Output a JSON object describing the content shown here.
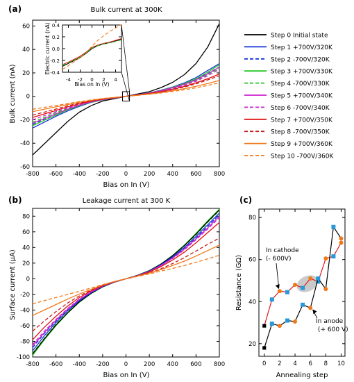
{
  "chart_data": [
    {
      "panel": "(a)",
      "type": "line",
      "title": "Bulk current at 300K",
      "xlabel": "Bias on In (V)",
      "ylabel": "Bulk current (nA)",
      "xlim": [
        -800,
        800
      ],
      "ylim": [
        -60,
        65
      ],
      "xticks": [
        -800,
        -600,
        -400,
        -200,
        0,
        200,
        400,
        600,
        800
      ],
      "yticks": [
        -60,
        -40,
        -20,
        0,
        20,
        40,
        60
      ],
      "x": [
        -800,
        -700,
        -600,
        -500,
        -400,
        -300,
        -200,
        -100,
        0,
        100,
        200,
        300,
        400,
        500,
        600,
        700,
        800
      ],
      "series": [
        {
          "name": "Step 0 Initial state",
          "color": "#000000",
          "dash": false,
          "values": [
            -50,
            -40.5,
            -31,
            -21.5,
            -13.5,
            -8,
            -4,
            -2,
            0,
            2,
            4,
            7.5,
            12,
            18.5,
            28,
            42,
            62
          ]
        },
        {
          "name": "Step 1 +700V/320K",
          "color": "#1030d8",
          "dash": false,
          "values": [
            -27,
            -22,
            -17,
            -12.5,
            -8.5,
            -5.2,
            -3,
            -1.5,
            0,
            1.5,
            3,
            5.2,
            8,
            11.5,
            16,
            22,
            28
          ]
        },
        {
          "name": "Step 2 -700V/320K",
          "color": "#1030d8",
          "dash": true,
          "values": [
            -24,
            -19.5,
            -15,
            -11,
            -7.5,
            -4.8,
            -2.8,
            -1.4,
            0,
            1.4,
            2.8,
            4.8,
            7.5,
            10.5,
            14.5,
            19.5,
            25
          ]
        },
        {
          "name": "Step 3 +700V/330K",
          "color": "#22c822",
          "dash": false,
          "values": [
            -25,
            -20.5,
            -16,
            -11.5,
            -8,
            -5,
            -2.9,
            -1.4,
            0,
            1.4,
            2.9,
            5,
            7.8,
            11,
            15,
            20.5,
            27
          ]
        },
        {
          "name": "Step 4 -700V/330K",
          "color": "#22c822",
          "dash": true,
          "values": [
            -22,
            -18,
            -14,
            -10.5,
            -7.2,
            -4.6,
            -2.7,
            -1.3,
            0,
            1.3,
            2.7,
            4.6,
            7,
            10,
            13.5,
            18.5,
            24
          ]
        },
        {
          "name": "Step 5 +700V/340K",
          "color": "#d020d0",
          "dash": false,
          "values": [
            -23,
            -19,
            -15,
            -11,
            -7.6,
            -4.8,
            -2.8,
            -1.4,
            0,
            1.4,
            2.8,
            4.8,
            7.3,
            10.3,
            14,
            19,
            25
          ]
        },
        {
          "name": "Step 6 -700V/340K",
          "color": "#d020d0",
          "dash": true,
          "values": [
            -20,
            -16.5,
            -13,
            -9.8,
            -6.8,
            -4.4,
            -2.6,
            -1.3,
            0,
            1.3,
            2.6,
            4.4,
            6.7,
            9.4,
            12.8,
            17.5,
            23
          ]
        },
        {
          "name": "Step 7 +700V/350K",
          "color": "#e01010",
          "dash": false,
          "values": [
            -18,
            -15,
            -12,
            -9,
            -6.3,
            -4.1,
            -2.4,
            -1.2,
            0,
            1.2,
            2.4,
            4,
            6,
            8.5,
            11.5,
            15,
            19
          ]
        },
        {
          "name": "Step 8 -700V/350K",
          "color": "#c41818",
          "dash": true,
          "values": [
            -16,
            -13.5,
            -10.8,
            -8.1,
            -5.8,
            -3.8,
            -2.2,
            -1.1,
            0,
            1.1,
            2.2,
            3.8,
            5.7,
            8,
            10.7,
            14,
            17.5
          ]
        },
        {
          "name": "Step 9 +700V/360K",
          "color": "#f07818",
          "dash": false,
          "values": [
            -13,
            -11,
            -9,
            -7,
            -5,
            -3.4,
            -2,
            -1,
            0,
            1,
            2,
            3.2,
            4.8,
            6.6,
            8.6,
            11,
            13.5
          ]
        },
        {
          "name": "Step 10 -700V/360K",
          "color": "#f07818",
          "dash": true,
          "values": [
            -11,
            -9.4,
            -7.8,
            -6.2,
            -4.5,
            -3.1,
            -1.9,
            -0.9,
            0,
            0.9,
            1.8,
            2.9,
            4.2,
            5.6,
            7.3,
            9.3,
            11.5
          ]
        }
      ],
      "inset": {
        "xlabel": "Bias on In (V)",
        "ylabel": "Electric current (nA)",
        "xlim": [
          -5,
          5
        ],
        "ylim": [
          -0.4,
          0.4
        ],
        "xticks": [
          -4,
          -2,
          0,
          2,
          4
        ],
        "yticks": [
          -0.4,
          -0.2,
          0.0,
          0.2,
          0.4
        ],
        "x": [
          -5,
          -4,
          -3,
          -2,
          -1,
          0,
          1,
          2,
          3,
          4,
          5
        ],
        "series": [
          {
            "color": "#000000",
            "dash": false,
            "values": [
              -0.3,
              -0.25,
              -0.2,
              -0.15,
              -0.08,
              0,
              0.05,
              0.08,
              0.1,
              0.13,
              0.16
            ]
          },
          {
            "color": "#e01010",
            "dash": false,
            "values": [
              -0.27,
              -0.23,
              -0.18,
              -0.13,
              -0.06,
              0.02,
              0.06,
              0.09,
              0.11,
              0.14,
              0.17
            ]
          },
          {
            "color": "#22c822",
            "dash": true,
            "values": [
              -0.28,
              -0.24,
              -0.19,
              -0.14,
              -0.07,
              0.01,
              0.05,
              0.08,
              0.1,
              0.12,
              0.15
            ]
          },
          {
            "color": "#f07818",
            "dash": true,
            "values": [
              -0.35,
              -0.29,
              -0.22,
              -0.15,
              -0.07,
              0.04,
              0.14,
              0.22,
              0.29,
              0.35,
              0.41
            ]
          }
        ]
      }
    },
    {
      "panel": "(b)",
      "type": "line",
      "title": "Leakage current at 300 K",
      "xlabel": "Bias on In (V)",
      "ylabel": "Surface current (µA)",
      "xlim": [
        -800,
        800
      ],
      "ylim": [
        -100,
        90
      ],
      "xticks": [
        -800,
        -600,
        -400,
        -200,
        0,
        200,
        400,
        600,
        800
      ],
      "yticks": [
        -100,
        -80,
        -60,
        -40,
        -20,
        0,
        20,
        40,
        60,
        80
      ],
      "x": [
        -800,
        -700,
        -600,
        -500,
        -400,
        -300,
        -200,
        -100,
        0,
        100,
        200,
        300,
        400,
        500,
        600,
        700,
        800
      ],
      "series": [
        {
          "color": "#22c822",
          "dash": false,
          "values": [
            -98,
            -78,
            -60,
            -44,
            -30,
            -19,
            -10.5,
            -4.5,
            0,
            4.5,
            10.5,
            19,
            30,
            43,
            58,
            74,
            89
          ]
        },
        {
          "color": "#22c822",
          "dash": true,
          "values": [
            -95,
            -76,
            -58,
            -43,
            -29,
            -18.5,
            -10,
            -4.3,
            0,
            4.3,
            10,
            18.5,
            29,
            42,
            56,
            72,
            87
          ]
        },
        {
          "color": "#000000",
          "dash": false,
          "values": [
            -96,
            -77,
            -59,
            -43.5,
            -29.5,
            -18.7,
            -10.2,
            -4.4,
            0,
            4.4,
            10.2,
            18.7,
            29.5,
            42.5,
            57,
            73,
            88
          ]
        },
        {
          "color": "#1030d8",
          "dash": false,
          "values": [
            -92,
            -73,
            -56,
            -41,
            -28,
            -18,
            -9.8,
            -4.2,
            0,
            4.2,
            9.8,
            18,
            28,
            40,
            54,
            69,
            84
          ]
        },
        {
          "color": "#1030d8",
          "dash": true,
          "values": [
            -88,
            -70,
            -54,
            -40,
            -27,
            -17.5,
            -9.6,
            -4.1,
            0,
            4.1,
            9.6,
            17.5,
            27,
            39,
            52,
            67,
            82
          ]
        },
        {
          "color": "#d020d0",
          "dash": false,
          "values": [
            -86,
            -69,
            -53,
            -39,
            -26.5,
            -17,
            -9.4,
            -4.1,
            0,
            4.1,
            9.4,
            17,
            26.5,
            38,
            51,
            65,
            80
          ]
        },
        {
          "color": "#d020d0",
          "dash": true,
          "values": [
            -84,
            -67,
            -52,
            -38,
            -26,
            -16.6,
            -9.2,
            -4,
            0,
            4,
            9.2,
            16.6,
            26,
            37,
            50,
            63.5,
            78
          ]
        },
        {
          "color": "#e01010",
          "dash": false,
          "values": [
            -78,
            -62,
            -48,
            -35,
            -24,
            -15.5,
            -8.6,
            -3.8,
            0,
            3.8,
            8.6,
            15.5,
            24,
            34,
            46,
            59,
            72
          ]
        },
        {
          "color": "#c41818",
          "dash": true,
          "values": [
            -67,
            -54,
            -42,
            -31,
            -22,
            -14.5,
            -8.2,
            -3.6,
            0,
            3.4,
            7.6,
            12.8,
            19.5,
            27,
            35.5,
            44,
            52
          ]
        },
        {
          "color": "#f07818",
          "dash": false,
          "values": [
            -47,
            -40,
            -33,
            -26,
            -19.5,
            -13.5,
            -8,
            -3.6,
            0,
            3.5,
            7.2,
            11.8,
            17,
            22.5,
            29,
            36,
            43
          ]
        },
        {
          "color": "#f07818",
          "dash": true,
          "values": [
            -32,
            -28,
            -24,
            -20,
            -16,
            -11.8,
            -7.5,
            -3.6,
            0,
            3,
            6.2,
            9.8,
            13.2,
            17,
            21,
            25.5,
            30
          ]
        }
      ]
    },
    {
      "panel": "(c)",
      "type": "scatter",
      "xlabel": "Annealing step",
      "ylabel": "Resistance (GΩ)",
      "xlim": [
        -0.7,
        10.5
      ],
      "ylim": [
        14,
        84
      ],
      "xticks": [
        0,
        2,
        4,
        6,
        8,
        10
      ],
      "yticks": [
        20,
        40,
        60,
        80
      ],
      "series": [
        {
          "name": "In cathode (- 600V)",
          "line_color": "#e01818",
          "points": [
            {
              "x": 0,
              "y": 28.5,
              "c": "#000000"
            },
            {
              "x": 1,
              "y": 41,
              "c": "#2a98d8"
            },
            {
              "x": 2,
              "y": 45,
              "c": "#f07818"
            },
            {
              "x": 3,
              "y": 44.5,
              "c": "#2a98d8"
            },
            {
              "x": 4,
              "y": 48,
              "c": "#f07818"
            },
            {
              "x": 5,
              "y": 46.5,
              "c": "#2a98d8"
            },
            {
              "x": 6,
              "y": 51,
              "c": "#f07818"
            },
            {
              "x": 7,
              "y": 49.5,
              "c": "#2a98d8"
            },
            {
              "x": 8,
              "y": 60.5,
              "c": "#f07818"
            },
            {
              "x": 9,
              "y": 61.5,
              "c": "#2a98d8"
            },
            {
              "x": 10,
              "y": 68,
              "c": "#f07818"
            }
          ]
        },
        {
          "name": "In anode (+ 600 V)",
          "line_color": "#000000",
          "points": [
            {
              "x": 0,
              "y": 18,
              "c": "#000000"
            },
            {
              "x": 1,
              "y": 29.5,
              "c": "#2a98d8"
            },
            {
              "x": 2,
              "y": 28.5,
              "c": "#f07818"
            },
            {
              "x": 3,
              "y": 31,
              "c": "#2a98d8"
            },
            {
              "x": 4,
              "y": 30.5,
              "c": "#f07818"
            },
            {
              "x": 5,
              "y": 38.5,
              "c": "#2a98d8"
            },
            {
              "x": 6,
              "y": 37,
              "c": "#f07818"
            },
            {
              "x": 7,
              "y": 51,
              "c": "#2a98d8"
            },
            {
              "x": 8,
              "y": 46,
              "c": "#f07818"
            },
            {
              "x": 9,
              "y": 75.5,
              "c": "#2a98d8"
            },
            {
              "x": 10,
              "y": 70,
              "c": "#f07818"
            }
          ]
        }
      ],
      "annotations": [
        "In cathode",
        "(- 600V)",
        "In anode",
        "(+ 600 V)"
      ]
    }
  ]
}
